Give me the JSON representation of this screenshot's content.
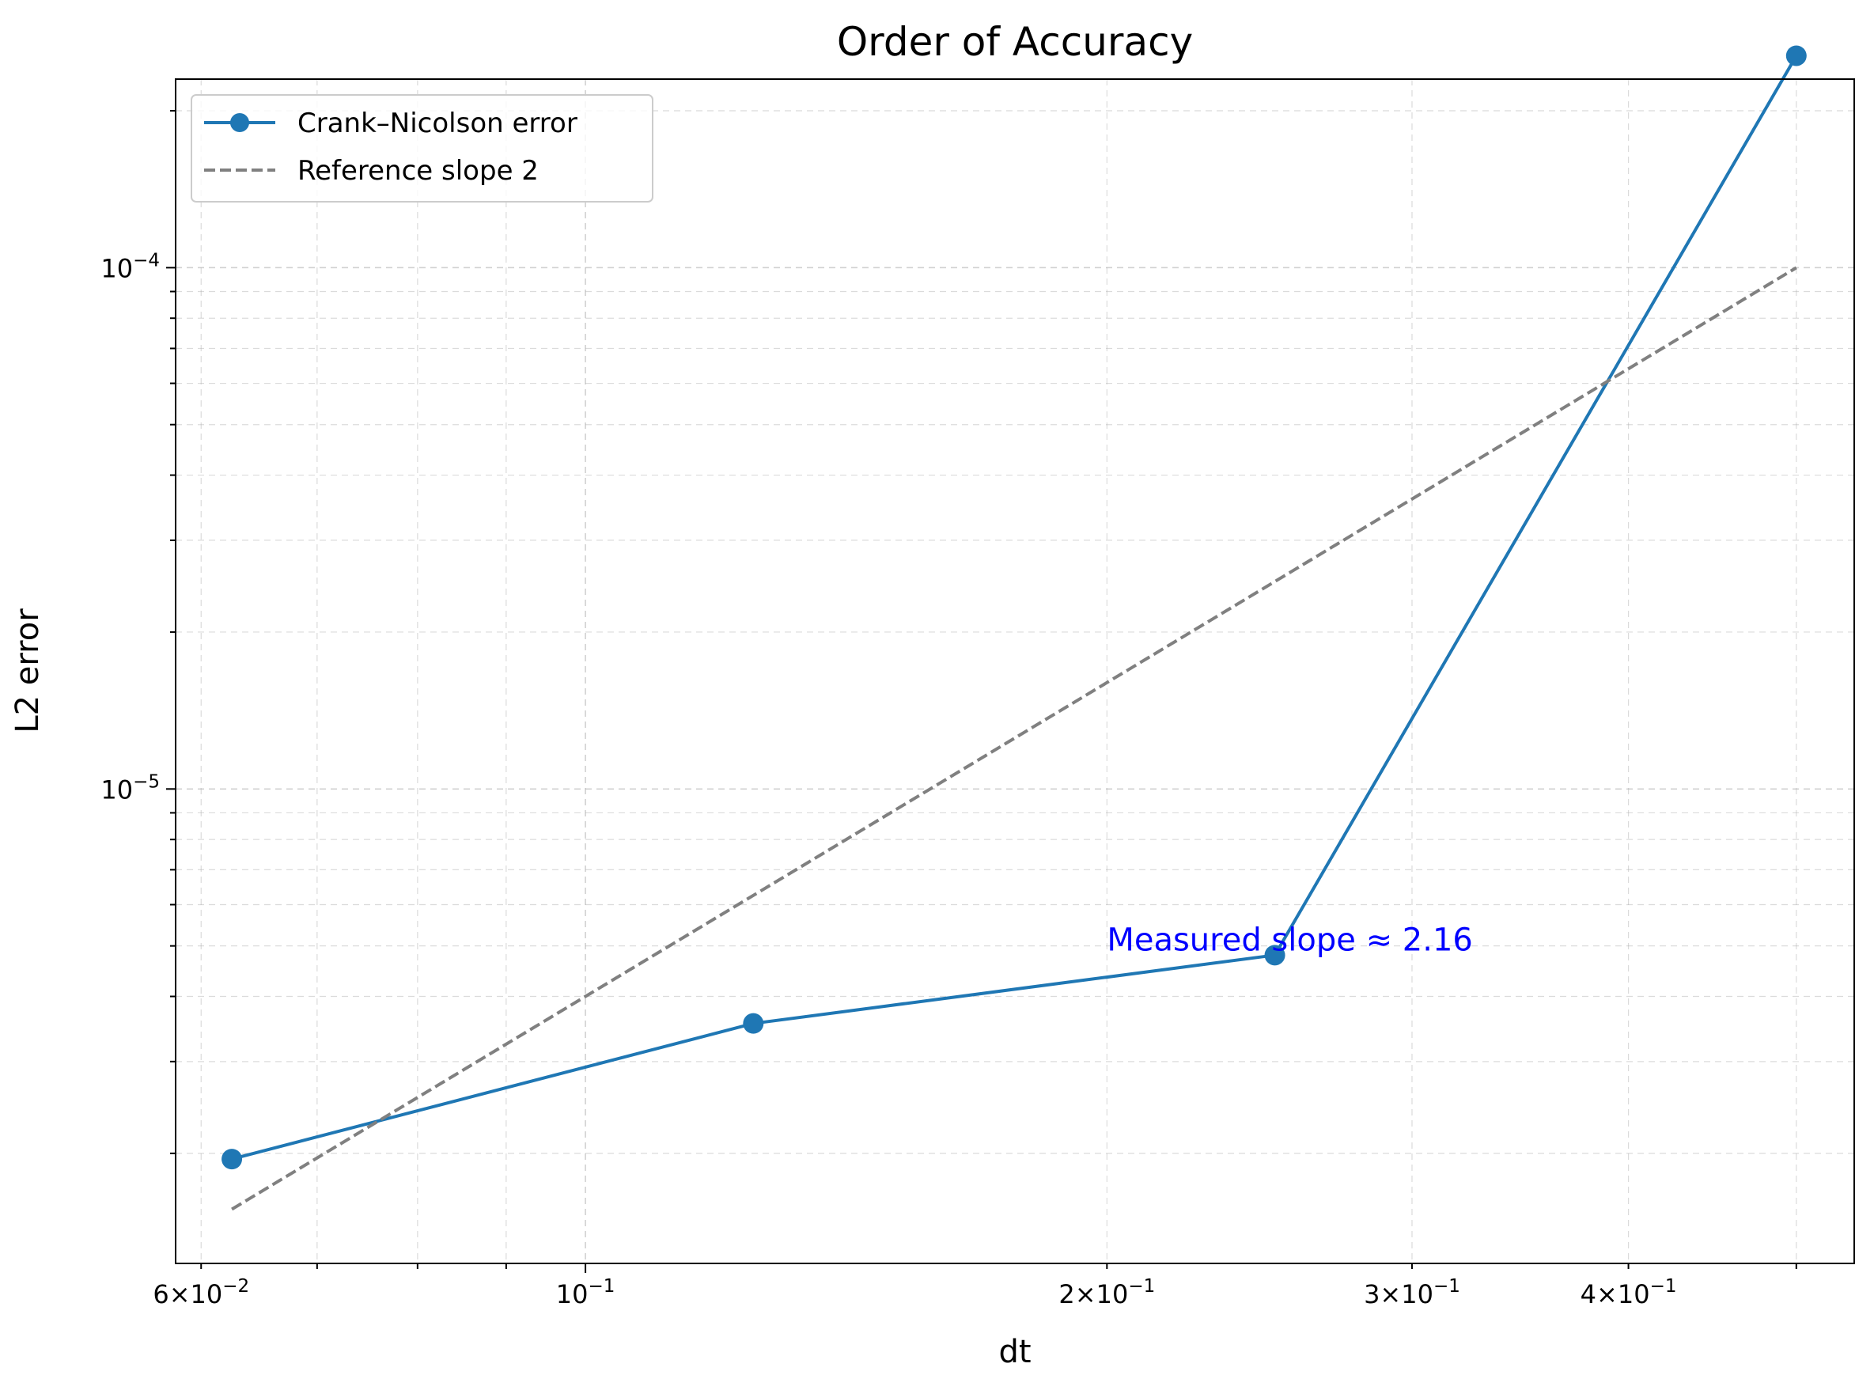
{
  "chart_data": {
    "type": "line",
    "title": "Order of Accuracy",
    "xlabel": "dt",
    "ylabel": "L2 error",
    "xscale": "log",
    "yscale": "log",
    "xlim": [
      0.058,
      0.54
    ],
    "ylim": [
      1.23e-06,
      0.00023
    ],
    "grid": "both (major and minor), dashed",
    "legend_position": "upper left",
    "x_ticks": [
      {
        "value": 0.06,
        "mant": "6",
        "exp": "−2"
      },
      {
        "value": 0.1,
        "mant": "",
        "exp": "−1"
      },
      {
        "value": 0.2,
        "mant": "2",
        "exp": "−1"
      },
      {
        "value": 0.3,
        "mant": "3",
        "exp": "−1"
      },
      {
        "value": 0.4,
        "mant": "4",
        "exp": "−1"
      }
    ],
    "y_ticks": [
      {
        "value": 1e-05,
        "mant": "",
        "exp": "−5"
      },
      {
        "value": 0.0001,
        "mant": "",
        "exp": "−4"
      }
    ],
    "series": [
      {
        "name": "Crank–Nicolson error",
        "color": "#1f77b4",
        "style": "solid",
        "marker": "circle",
        "x": [
          0.0625,
          0.125,
          0.25,
          0.5
        ],
        "y": [
          1.95e-06,
          3.55e-06,
          4.8e-06,
          0.000255
        ]
      },
      {
        "name": "Reference slope 2",
        "color": "#808080",
        "style": "dashed",
        "marker": "none",
        "x": [
          0.0625,
          0.5
        ],
        "y": [
          1.5625e-06,
          0.0001
        ]
      }
    ],
    "annotations": [
      {
        "text": "Measured slope ≈ 2.16",
        "x": 0.2,
        "y": 4.9e-06,
        "color": "#0000ff"
      }
    ]
  }
}
